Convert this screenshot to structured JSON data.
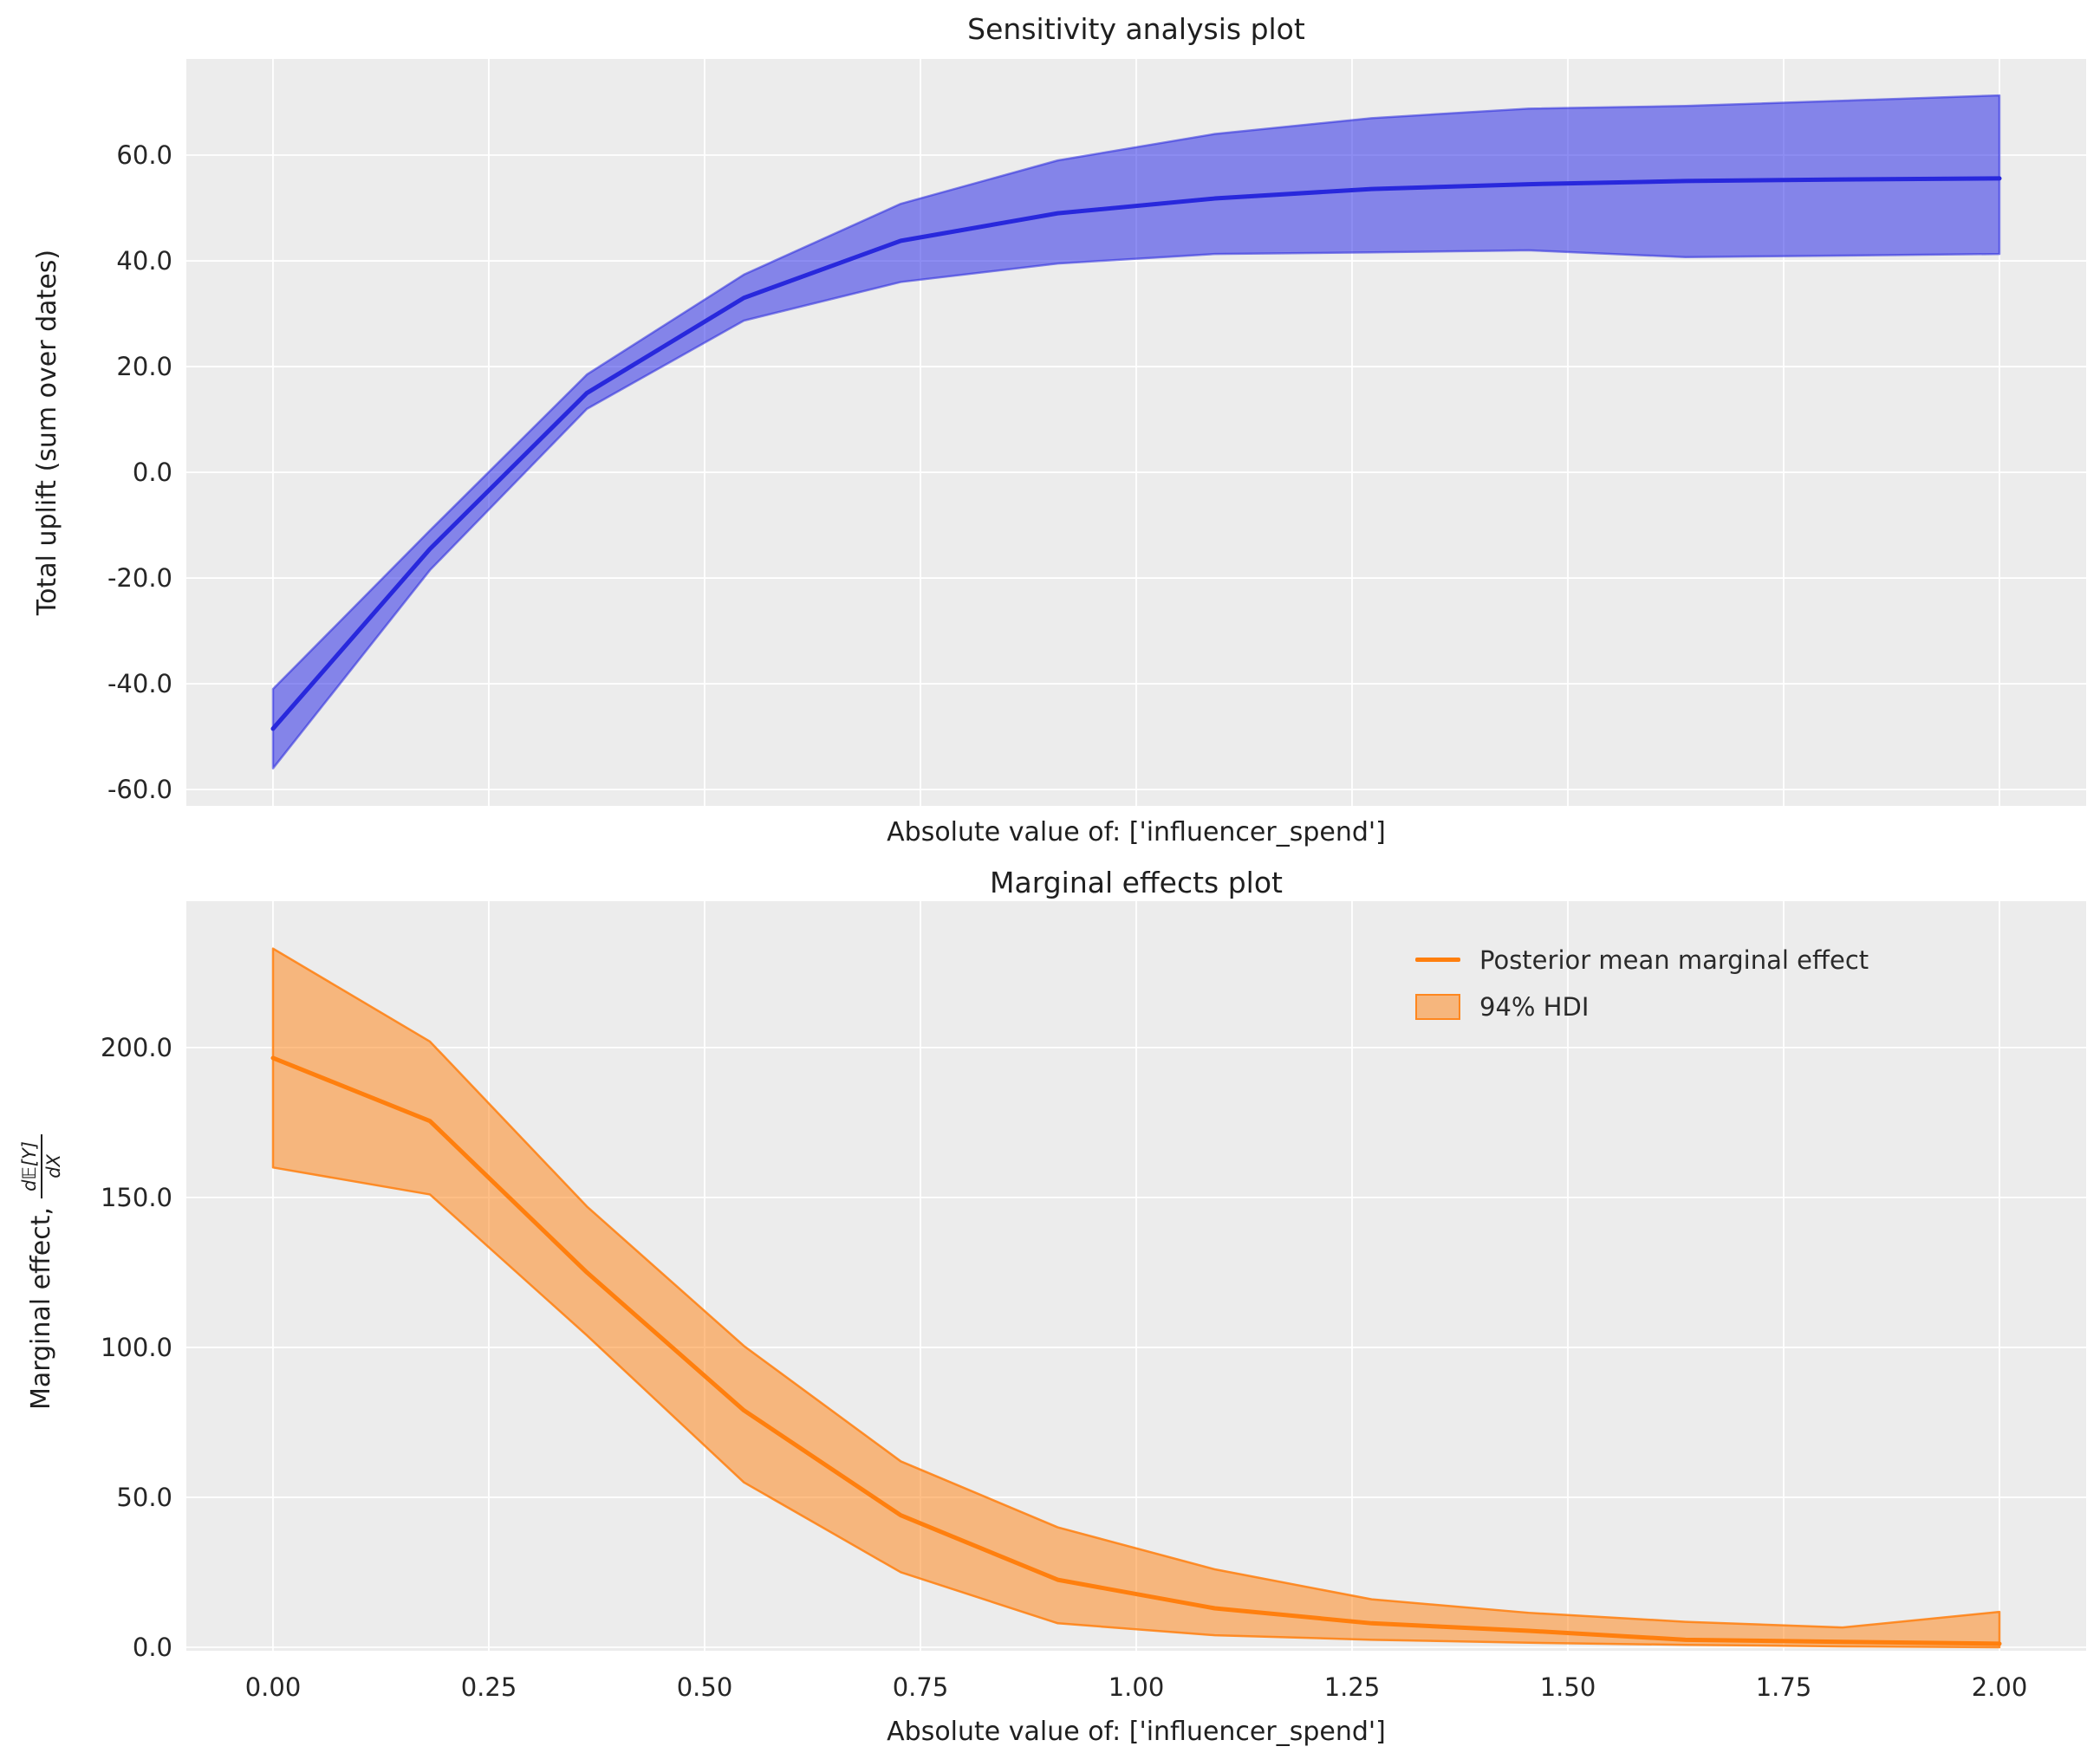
{
  "figure": {
    "background": "#ffffff",
    "axes_background": "#ececec",
    "grid_color": "#ffffff",
    "text_color": "#1f1f1f",
    "tick_color": "#262626"
  },
  "chart_data": [
    {
      "type": "line",
      "svg_id": "chart-top",
      "title": "Sensitivity analysis plot",
      "xlabel": "Absolute value of: ['influencer_spend']",
      "ylabel": "Total uplift (sum over dates)",
      "x": [
        0.0,
        0.1818,
        0.3636,
        0.5455,
        0.7273,
        0.9091,
        1.0909,
        1.2727,
        1.4545,
        1.6364,
        1.8182,
        2.0
      ],
      "series": [
        {
          "name": "posterior_mean",
          "values": [
            -48.5,
            -14.5,
            15.0,
            33.0,
            43.8,
            49.0,
            51.8,
            53.6,
            54.5,
            55.1,
            55.4,
            55.6
          ]
        },
        {
          "name": "hdi_94_lower",
          "values": [
            -56.0,
            -18.5,
            12.0,
            28.7,
            36.0,
            39.5,
            41.3,
            41.6,
            42.0,
            40.7,
            41.0,
            41.3
          ]
        },
        {
          "name": "hdi_94_upper",
          "values": [
            -41.0,
            -11.0,
            18.5,
            37.4,
            50.8,
            59.0,
            64.0,
            67.0,
            68.8,
            69.3,
            70.3,
            71.3
          ]
        }
      ],
      "xticks": [
        0.0,
        0.25,
        0.5,
        0.75,
        1.0,
        1.25,
        1.5,
        1.75,
        2.0
      ],
      "show_xtick_labels": false,
      "yticks": [
        60.0,
        40.0,
        20.0,
        0.0,
        -20.0,
        -40.0,
        -60.0
      ],
      "ytick_decimals": 1,
      "xtick_decimals": 2,
      "xlim": [
        -0.1004,
        2.1004
      ],
      "ylim": [
        -63.1,
        78.2
      ],
      "grid": true,
      "line_color": "#2828dc",
      "band_fill": "rgba(48,48,232,0.55)",
      "band_edge": "rgba(40,40,220,0.55)"
    },
    {
      "type": "line",
      "svg_id": "chart-bottom",
      "title": "Marginal effects plot",
      "xlabel": "Absolute value of: ['influencer_spend']",
      "ylabel_prefix": "Marginal effect, ",
      "ylabel_frac_num": "d𝔼[Y]",
      "ylabel_frac_den": "dX",
      "x": [
        0.0,
        0.1818,
        0.3636,
        0.5455,
        0.7273,
        0.9091,
        1.0909,
        1.2727,
        1.4545,
        1.6364,
        1.8182,
        2.0
      ],
      "series": [
        {
          "name": "posterior_mean",
          "values": [
            196.5,
            175.5,
            125.0,
            79.0,
            44.0,
            22.5,
            13.0,
            8.0,
            5.5,
            2.5,
            1.8,
            1.2
          ]
        },
        {
          "name": "hdi_94_lower",
          "values": [
            160.0,
            151.0,
            104.0,
            55.0,
            25.0,
            8.0,
            4.0,
            2.5,
            1.5,
            0.8,
            0.3,
            0.0
          ]
        },
        {
          "name": "hdi_94_upper",
          "values": [
            233.0,
            202.0,
            147.0,
            100.5,
            62.0,
            40.0,
            26.0,
            16.0,
            11.5,
            8.5,
            6.6,
            11.8
          ]
        }
      ],
      "xticks": [
        0.0,
        0.25,
        0.5,
        0.75,
        1.0,
        1.25,
        1.5,
        1.75,
        2.0
      ],
      "show_xtick_labels": true,
      "yticks": [
        200.0,
        150.0,
        100.0,
        50.0,
        0.0
      ],
      "ytick_decimals": 1,
      "xtick_decimals": 2,
      "xlim": [
        -0.1004,
        2.1004
      ],
      "ylim": [
        -1.16,
        248.8
      ],
      "grid": true,
      "line_color": "#ff7f0e",
      "band_fill": "rgba(255,127,14,0.5)",
      "band_edge": "rgba(255,127,14,0.85)",
      "legend": {
        "position": "upper right",
        "items": [
          {
            "sample": "line",
            "label": "Posterior mean marginal effect"
          },
          {
            "sample": "patch",
            "label": "94% HDI"
          }
        ]
      }
    }
  ]
}
